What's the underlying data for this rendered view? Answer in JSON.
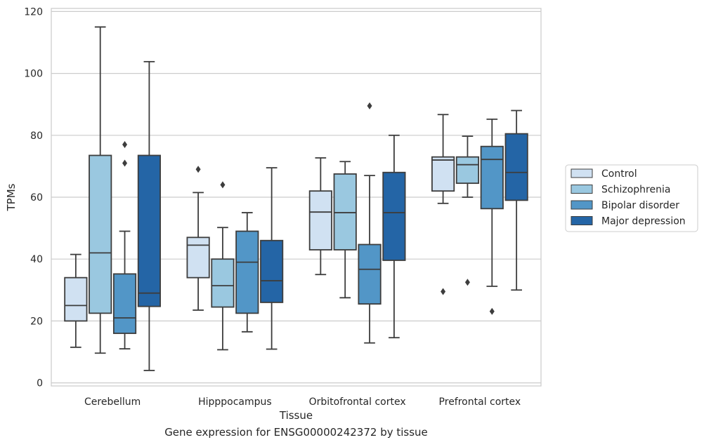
{
  "chart_data": {
    "type": "boxplot",
    "xlabel": "Tissue",
    "ylabel": "TPMs",
    "caption": "Gene expression for ENSG00000242372 by tissue",
    "ylim": [
      -1,
      121
    ],
    "yticks": [
      0,
      20,
      40,
      60,
      80,
      100,
      120
    ],
    "grid": "horizontal",
    "legend_position": "right",
    "categories": [
      "Cerebellum",
      "Hipppocampus",
      "Orbitofrontal cortex",
      "Prefrontal cortex"
    ],
    "series": [
      {
        "name": "Control",
        "color": "#d0e1f2",
        "boxes": [
          {
            "whislo": 11.5,
            "q1": 20,
            "med": 25,
            "q3": 34,
            "whishi": 41.5,
            "fliers": []
          },
          {
            "whislo": 23.5,
            "q1": 34,
            "med": 44.5,
            "q3": 47,
            "whishi": 61.5,
            "fliers": [
              69
            ]
          },
          {
            "whislo": 35,
            "q1": 43,
            "med": 55.2,
            "q3": 62,
            "whishi": 72.7,
            "fliers": []
          },
          {
            "whislo": 58,
            "q1": 62,
            "med": 72,
            "q3": 73,
            "whishi": 86.7,
            "fliers": [
              29.5
            ]
          }
        ]
      },
      {
        "name": "Schizophrenia",
        "color": "#9ac8e0",
        "boxes": [
          {
            "whislo": 9.6,
            "q1": 22.5,
            "med": 42,
            "q3": 73.5,
            "whishi": 115,
            "fliers": []
          },
          {
            "whislo": 10.7,
            "q1": 24.5,
            "med": 31.4,
            "q3": 40,
            "whishi": 50.2,
            "fliers": [
              64
            ]
          },
          {
            "whislo": 27.5,
            "q1": 43,
            "med": 55,
            "q3": 67.5,
            "whishi": 71.5,
            "fliers": []
          },
          {
            "whislo": 60,
            "q1": 64.5,
            "med": 70.5,
            "q3": 73,
            "whishi": 79.7,
            "fliers": [
              32.5
            ]
          }
        ]
      },
      {
        "name": "Bipolar disorder",
        "color": "#5296c7",
        "boxes": [
          {
            "whislo": 11,
            "q1": 16,
            "med": 21,
            "q3": 35.2,
            "whishi": 49,
            "fliers": [
              77,
              71
            ]
          },
          {
            "whislo": 16.5,
            "q1": 22.5,
            "med": 39,
            "q3": 49,
            "whishi": 55,
            "fliers": []
          },
          {
            "whislo": 12.9,
            "q1": 25.5,
            "med": 36.7,
            "q3": 44.7,
            "whishi": 67,
            "fliers": [
              89.5
            ]
          },
          {
            "whislo": 31.2,
            "q1": 56.3,
            "med": 72.2,
            "q3": 76.4,
            "whishi": 85.2,
            "fliers": [
              23.1
            ]
          }
        ]
      },
      {
        "name": "Major depression",
        "color": "#2465a6",
        "boxes": [
          {
            "whislo": 4,
            "q1": 24.7,
            "med": 29,
            "q3": 73.5,
            "whishi": 103.8,
            "fliers": []
          },
          {
            "whislo": 10.9,
            "q1": 26,
            "med": 33,
            "q3": 46,
            "whishi": 69.5,
            "fliers": []
          },
          {
            "whislo": 14.6,
            "q1": 39.6,
            "med": 55,
            "q3": 68,
            "whishi": 80,
            "fliers": []
          },
          {
            "whislo": 30,
            "q1": 59,
            "med": 68,
            "q3": 80.5,
            "whishi": 88,
            "fliers": []
          }
        ]
      }
    ]
  }
}
